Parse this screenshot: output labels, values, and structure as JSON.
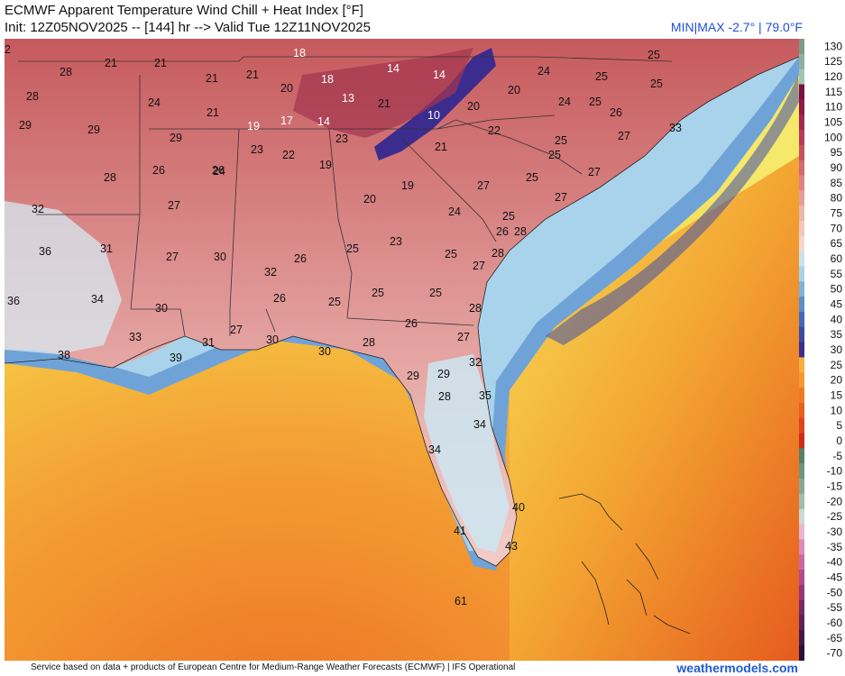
{
  "header": {
    "title": "ECMWF Apparent Temperature Wind Chill + Heat Index [°F]",
    "subtitle": "Init: 12Z05NOV2025 -- [144] hr --> Valid Tue 12Z11NOV2025",
    "minmax": "MIN|MAX -2.7° | 79.0°F"
  },
  "colorbar": {
    "ticks": [
      "130",
      "125",
      "120",
      "115",
      "110",
      "105",
      "100",
      "95",
      "90",
      "85",
      "80",
      "75",
      "70",
      "65",
      "60",
      "55",
      "50",
      "45",
      "40",
      "35",
      "30",
      "25",
      "20",
      "15",
      "10",
      "5",
      "0",
      "-5",
      "-10",
      "-15",
      "-20",
      "-25",
      "-30",
      "-35",
      "-40",
      "-45",
      "-50",
      "-55",
      "-60",
      "-65",
      "-70"
    ],
    "colors": [
      "#7b9b8a",
      "#8fb09d",
      "#a6c4b3",
      "#7a1040",
      "#8e1a48",
      "#a3284f",
      "#b83a57",
      "#c9505e",
      "#d26b72",
      "#dc8585",
      "#e39e9a",
      "#eab6ae",
      "#f0c8c0",
      "#f4d8d0",
      "#c9e3ef",
      "#a9d3ea",
      "#7fb4dd",
      "#5a90cc",
      "#4269b9",
      "#3a4aa3",
      "#3a2f8c",
      "#f7b23b",
      "#f49a2e",
      "#ee7c24",
      "#e85f1e",
      "#dd461a",
      "#cb2e17",
      "#57816b",
      "#6f9580",
      "#88a896",
      "#a2bcaf",
      "#c8dad2",
      "#e5b7cf",
      "#d98cb8",
      "#c96aa4",
      "#b04c8f",
      "#93387b",
      "#762a6b",
      "#5c215a",
      "#43184a",
      "#2b0f36"
    ]
  },
  "map_labels": [
    {
      "t": "18",
      "w": true
    },
    {
      "t": "28"
    },
    {
      "t": "21"
    },
    {
      "t": "21"
    },
    {
      "t": "21"
    },
    {
      "t": "21"
    },
    {
      "t": "20"
    },
    {
      "t": "18",
      "w": true
    },
    {
      "t": "14",
      "w": true
    },
    {
      "t": "14",
      "w": true
    },
    {
      "t": "25"
    },
    {
      "t": "24"
    },
    {
      "t": "25"
    },
    {
      "t": "28"
    },
    {
      "t": "24"
    },
    {
      "t": "13",
      "w": true
    },
    {
      "t": "21"
    },
    {
      "t": "10",
      "w": true
    },
    {
      "t": "20"
    },
    {
      "t": "20"
    },
    {
      "t": "24"
    },
    {
      "t": "25"
    },
    {
      "t": "26"
    },
    {
      "t": "25"
    },
    {
      "t": "29"
    },
    {
      "t": "29"
    },
    {
      "t": "21"
    },
    {
      "t": "19",
      "w": true
    },
    {
      "t": "17",
      "w": true
    },
    {
      "t": "14",
      "w": true
    },
    {
      "t": "23"
    },
    {
      "t": "22"
    },
    {
      "t": "25"
    },
    {
      "t": "27"
    },
    {
      "t": "33"
    },
    {
      "t": "29"
    },
    {
      "t": "23"
    },
    {
      "t": "22"
    },
    {
      "t": "21"
    },
    {
      "t": "25"
    },
    {
      "t": "26"
    },
    {
      "t": "19"
    },
    {
      "t": "27"
    },
    {
      "t": "28"
    },
    {
      "t": "26"
    },
    {
      "t": "24"
    },
    {
      "t": "19"
    },
    {
      "t": "27"
    },
    {
      "t": "25"
    },
    {
      "t": "32"
    },
    {
      "t": "20"
    },
    {
      "t": "27"
    },
    {
      "t": "27"
    },
    {
      "t": "22"
    },
    {
      "t": "24"
    },
    {
      "t": "25"
    },
    {
      "t": "26"
    },
    {
      "t": "28"
    },
    {
      "t": "36"
    },
    {
      "t": "31"
    },
    {
      "t": "27"
    },
    {
      "t": "30"
    },
    {
      "t": "26"
    },
    {
      "t": "23"
    },
    {
      "t": "25"
    },
    {
      "t": "25"
    },
    {
      "t": "28"
    },
    {
      "t": "27"
    },
    {
      "t": "36"
    },
    {
      "t": "34"
    },
    {
      "t": "32"
    },
    {
      "t": "26"
    },
    {
      "t": "25"
    },
    {
      "t": "25"
    },
    {
      "t": "25"
    },
    {
      "t": "30"
    },
    {
      "t": "26"
    },
    {
      "t": "28"
    },
    {
      "t": "33"
    },
    {
      "t": "27"
    },
    {
      "t": "30"
    },
    {
      "t": "28"
    },
    {
      "t": "27"
    },
    {
      "t": "38"
    },
    {
      "t": "39"
    },
    {
      "t": "31"
    },
    {
      "t": "30"
    },
    {
      "t": "32"
    },
    {
      "t": "29"
    },
    {
      "t": "29"
    },
    {
      "t": "28"
    },
    {
      "t": "35"
    },
    {
      "t": "34"
    },
    {
      "t": "34"
    },
    {
      "t": "40"
    },
    {
      "t": "41"
    },
    {
      "t": "43"
    },
    {
      "t": "61"
    }
  ],
  "footer": {
    "credit": "Service based on data + products of European Centre for Medium-Range Weather Forecasts (ECMWF) | IFS Operational",
    "brand": "weathermodels.com"
  }
}
